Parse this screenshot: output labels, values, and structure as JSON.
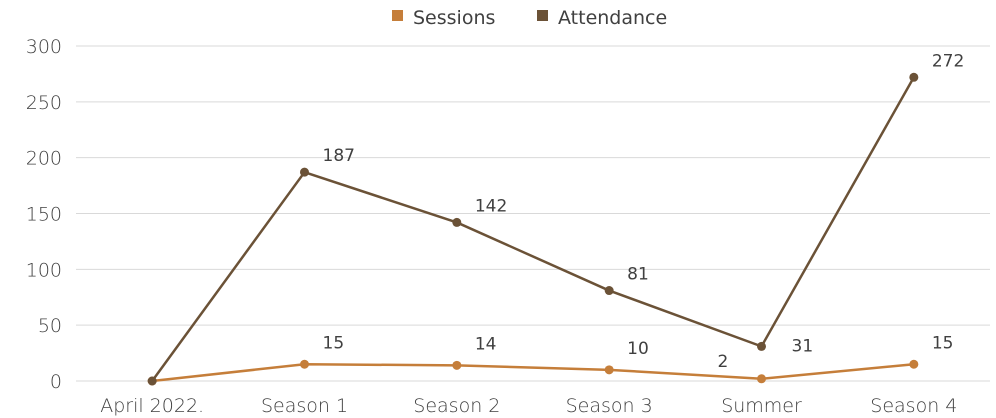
{
  "chart_data": {
    "type": "line",
    "categories": [
      "April 2022.",
      "Season 1",
      "Season 2",
      "Season 3",
      "Summer",
      "Season 4"
    ],
    "series": [
      {
        "name": "Sessions",
        "color": "#C57E3A",
        "values": [
          0,
          15,
          14,
          10,
          2,
          15
        ],
        "labels": [
          "",
          "15",
          "14",
          "10",
          "2",
          "15"
        ]
      },
      {
        "name": "Attendance",
        "color": "#6B5237",
        "values": [
          0,
          187,
          142,
          81,
          31,
          272
        ],
        "labels": [
          "",
          "187",
          "142",
          "81",
          "31",
          "272"
        ]
      }
    ],
    "ylim": [
      0,
      300
    ],
    "yticks": [
      "0",
      "50",
      "100",
      "150",
      "200",
      "250",
      "300"
    ],
    "grid": true,
    "legend": "top-center"
  }
}
